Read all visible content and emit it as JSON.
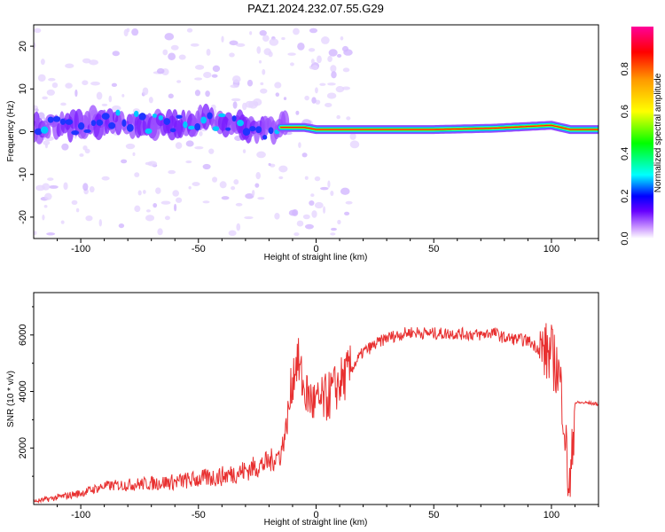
{
  "title": "PAZ1.2024.232.07.55.G29",
  "chart_data": [
    {
      "type": "heatmap",
      "xlabel": "Height of straight line (km)",
      "ylabel": "Frequency (Hz)",
      "xlim": [
        -120,
        120
      ],
      "ylim": [
        -25,
        25
      ],
      "xticks": [
        -100,
        -50,
        0,
        50,
        100
      ],
      "yticks": [
        -20,
        -10,
        0,
        10,
        20
      ],
      "colorbar": {
        "label": "Normalized spectral amplitude",
        "range": [
          0,
          1
        ],
        "ticks": [
          "0.0",
          "0.2",
          "0.4",
          "0.6",
          "0.8"
        ],
        "colors": [
          "#ffffff",
          "#cc99ff",
          "#6600ff",
          "#0000ff",
          "#00ffff",
          "#00ff00",
          "#ffff00",
          "#ff9900",
          "#ff0000",
          "#ff0099"
        ]
      },
      "dominant_frequency_track": {
        "height_km": [
          -115,
          -100,
          -85,
          -70,
          -55,
          -40,
          -25,
          -15,
          -5,
          0,
          10,
          25,
          50,
          75,
          100,
          108,
          120
        ],
        "frequency_hz": [
          1.5,
          1.5,
          2.5,
          2.0,
          1.5,
          2.5,
          0.5,
          1.0,
          1.0,
          0.5,
          0.5,
          0.5,
          0.5,
          0.8,
          1.5,
          0.5,
          0.5
        ]
      }
    },
    {
      "type": "line",
      "xlabel": "Height of straight line (km)",
      "ylabel": "SNR (10 * v/v)",
      "xlim": [
        -120,
        120
      ],
      "ylim": [
        0,
        7500
      ],
      "xticks": [
        -100,
        -50,
        0,
        50,
        100
      ],
      "yticks": [
        2000,
        4000,
        6000
      ],
      "color": "#e83030",
      "series": [
        {
          "x": [
            -120,
            -110,
            -100,
            -90,
            -80,
            -70,
            -60,
            -50,
            -40,
            -30,
            -20,
            -15,
            -12,
            -10,
            -8,
            -5,
            0,
            5,
            10,
            15,
            20,
            30,
            40,
            50,
            60,
            70,
            75,
            80,
            90,
            95,
            100,
            103,
            105,
            107,
            108,
            110,
            115,
            120
          ],
          "y": [
            100,
            250,
            400,
            650,
            700,
            750,
            800,
            900,
            1000,
            1200,
            1500,
            1800,
            3000,
            4500,
            5200,
            4000,
            3500,
            3800,
            4300,
            4800,
            5400,
            5900,
            6100,
            6050,
            6050,
            6000,
            6100,
            5900,
            5800,
            5500,
            5300,
            4700,
            3500,
            1000,
            500,
            3600,
            3600,
            3550
          ]
        }
      ]
    }
  ]
}
